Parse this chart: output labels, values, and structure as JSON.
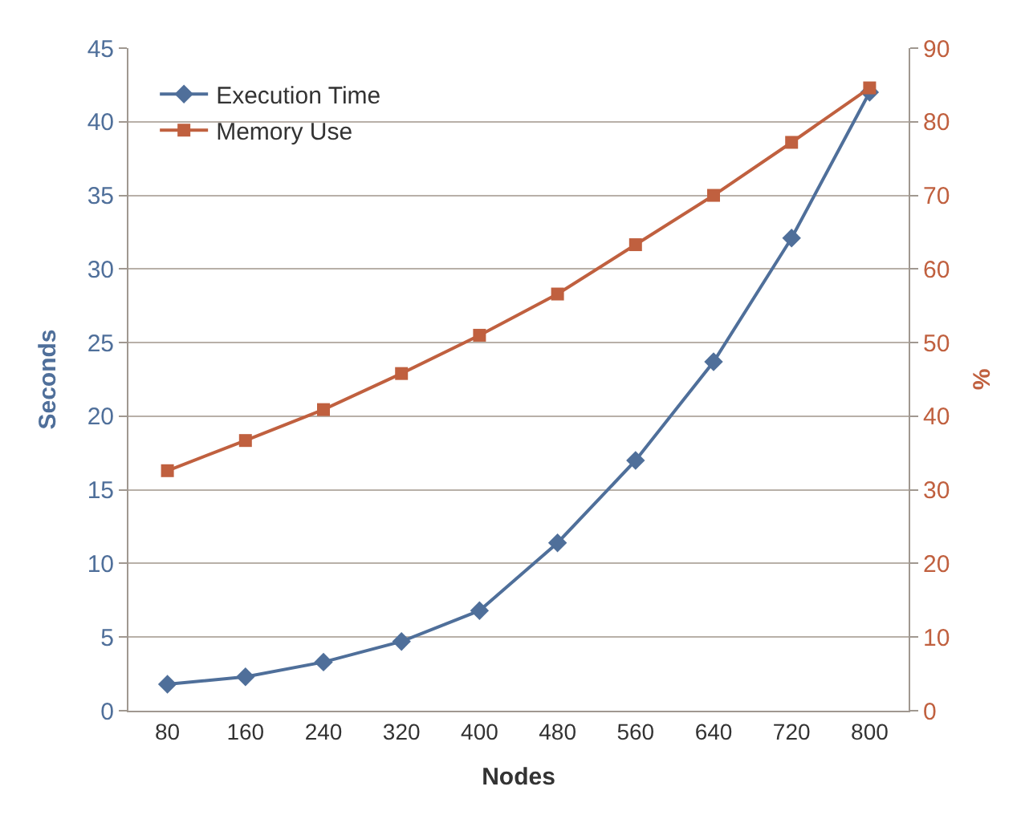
{
  "chart_data": {
    "type": "line",
    "categories": [
      "80",
      "160",
      "240",
      "320",
      "400",
      "480",
      "560",
      "640",
      "720",
      "800"
    ],
    "xlabel": "Nodes",
    "ylabel": "Seconds",
    "y2label": "%",
    "ylim": [
      0,
      45
    ],
    "yticks": [
      0,
      5,
      10,
      15,
      20,
      25,
      30,
      35,
      40,
      45
    ],
    "y2lim": [
      0,
      90
    ],
    "y2ticks": [
      0,
      10,
      20,
      30,
      40,
      50,
      60,
      70,
      80,
      90
    ],
    "grid": "y",
    "legend": "top left",
    "line_style": "solid",
    "series": [
      {
        "name": "Execution Time",
        "color": "#4f6f9a",
        "marker": "diamond",
        "values": [
          1.8,
          2.3,
          3.3,
          4.7,
          6.8,
          11.4,
          17.0,
          23.7,
          32.1,
          42.0
        ]
      },
      {
        "name": "Memory Use",
        "color": "#c0603f",
        "marker": "square",
        "axis": "y2",
        "values": [
          32.6,
          36.7,
          40.9,
          45.8,
          51.0,
          56.6,
          63.3,
          70.0,
          77.2,
          84.6
        ]
      }
    ]
  }
}
